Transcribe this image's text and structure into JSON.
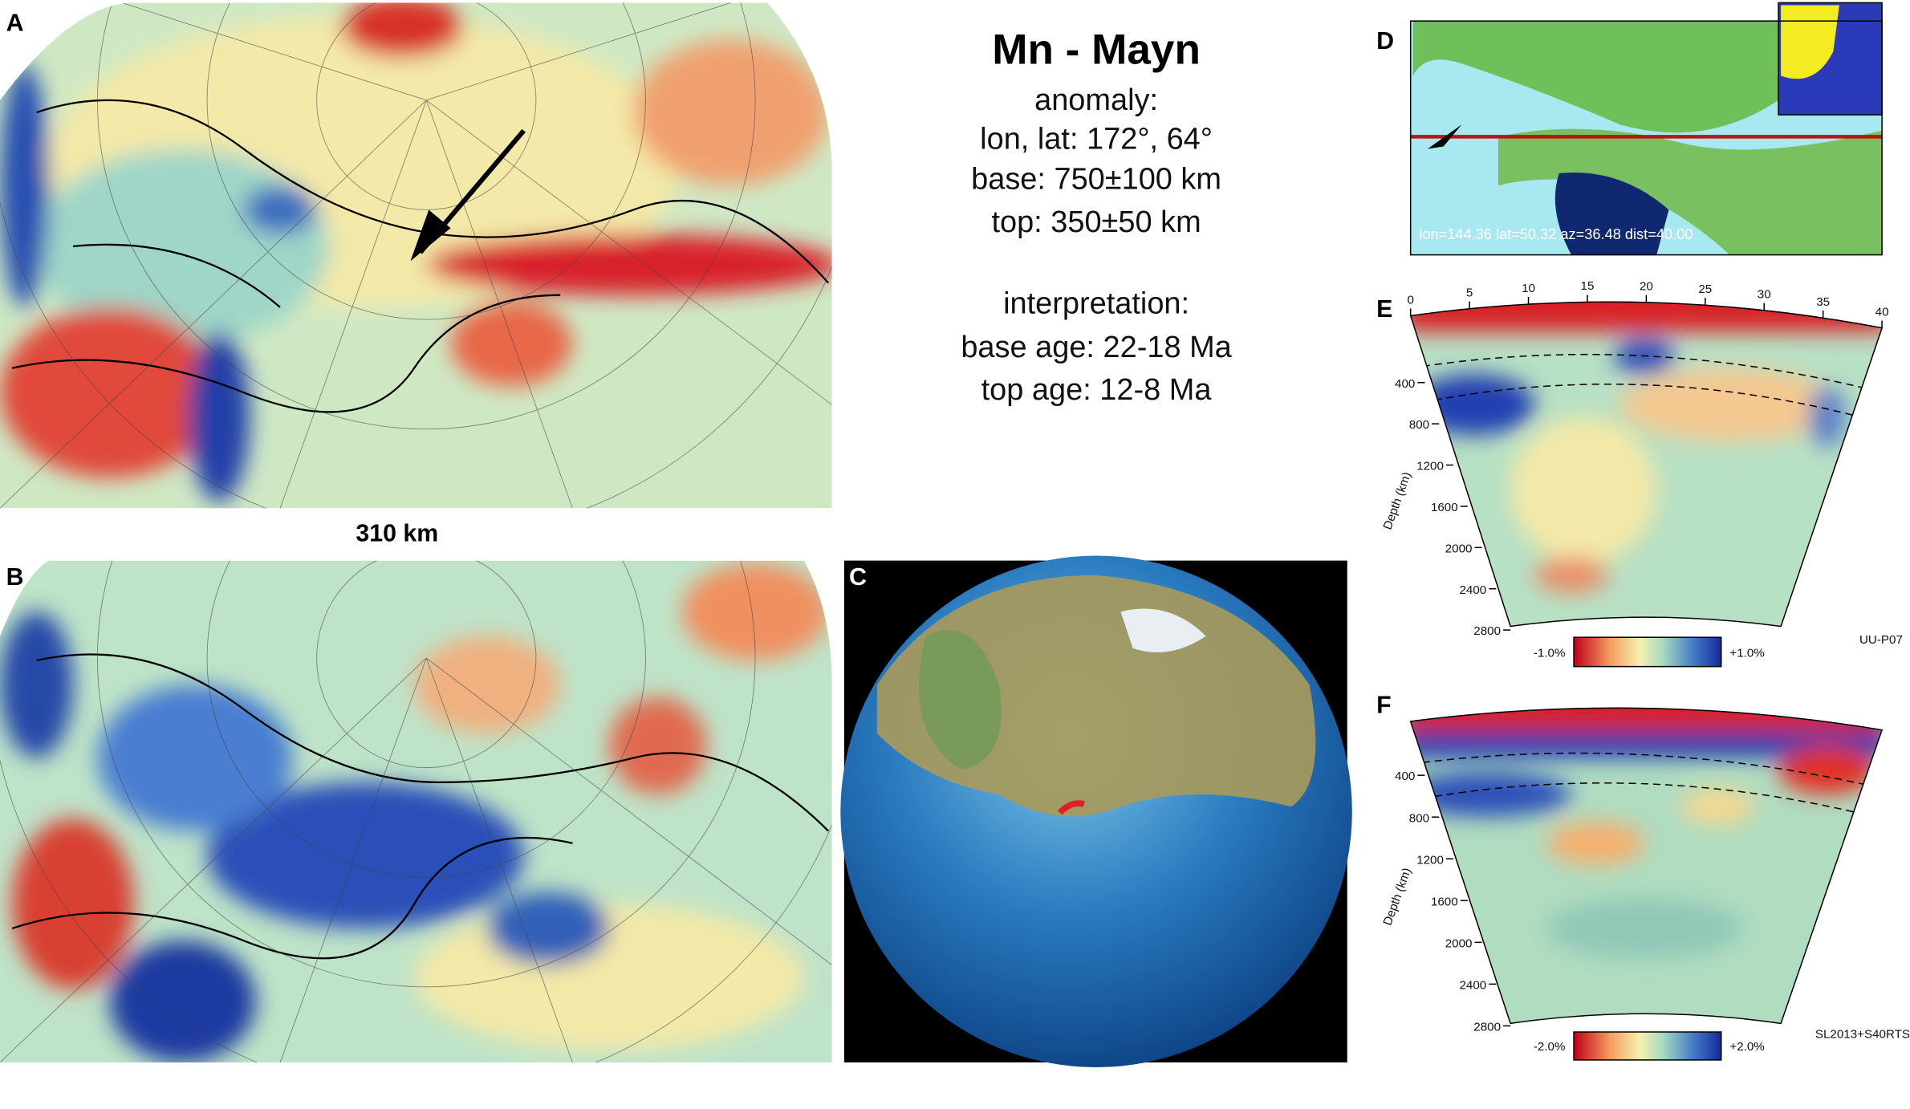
{
  "title": "Mn - Mayn",
  "info": [
    "anomaly:",
    "lon, lat: 172°, 64°",
    "base: 750±100 km",
    "top: 350±50 km",
    "interpretation:",
    "base age: 22-18 Ma",
    "top age: 12-8 Ma"
  ],
  "panels": {
    "A": {
      "label": "A",
      "depth_label": "310 km"
    },
    "B": {
      "label": "B"
    },
    "C": {
      "label": "C"
    },
    "D": {
      "label": "D",
      "profile_info": "lon=144.36 lat=50.32 az=36.48 dist=40.00"
    },
    "E": {
      "label": "E",
      "distance_ticks": [
        "0",
        "5",
        "10",
        "15",
        "20",
        "25",
        "30",
        "35",
        "40"
      ],
      "depth_ticks": [
        "400",
        "800",
        "1200",
        "1600",
        "2000",
        "2400",
        "2800"
      ],
      "depth_axis": "Depth (km)",
      "colorbar_min": "-1.0%",
      "colorbar_max": "+1.0%",
      "model": "UU-P07"
    },
    "F": {
      "label": "F",
      "depth_ticks": [
        "400",
        "800",
        "1200",
        "1600",
        "2000",
        "2400",
        "2800"
      ],
      "depth_axis": "Depth (km)",
      "colorbar_min": "-2.0%",
      "colorbar_max": "+2.0%",
      "model": "SL2013+S40RTS"
    }
  }
}
